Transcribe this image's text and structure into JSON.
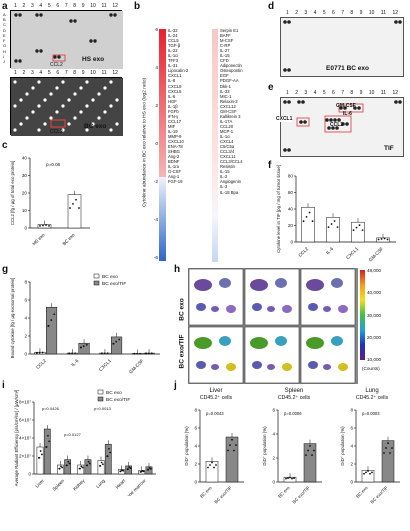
{
  "panels": {
    "a": {
      "letter": "a",
      "columns": [
        "1",
        "2",
        "3",
        "4",
        "5",
        "6",
        "7",
        "8",
        "9",
        "10",
        "11",
        "12"
      ],
      "rows": [
        "A",
        "B",
        "C",
        "D",
        "E",
        "F",
        "G",
        "H",
        "I",
        "J"
      ],
      "hs_label": "HS exo",
      "bc_label": "BC exo",
      "highlight": "CCL2"
    },
    "b": {
      "letter": "b",
      "ylabel": "Cytokine abundance in BC exo relative to HS exo (log2 ratio)",
      "scale_ticks": [
        "6",
        "4",
        "2",
        "0",
        "-2",
        "-4",
        "-6"
      ],
      "left_list": [
        "IL-32",
        "IL-24",
        "CCL5",
        "TGF-β",
        "IL-22",
        "IL-1α",
        "TFF3",
        "IL-31",
        "Lipocalin-2",
        "CXCL1",
        "IL-8",
        "CXCL9",
        "CXCL5",
        "IL-6",
        "HGF",
        "IL-1β",
        "FGFb",
        "IFN-γ",
        "CCL17",
        "MIF",
        "IL-19",
        "MMP-9",
        "CXCL10",
        "ENA-78",
        "SHBG",
        "Ang-2",
        "BDNF",
        "IL-1ra",
        "G-CSF",
        "Ang-1",
        "FGF-19"
      ],
      "right_list": [
        "Serpin E1",
        "BAFF",
        "M-CSF",
        "C-RP",
        "IL-27",
        "IL-15",
        "CFD",
        "Adiponectin",
        "Osteopontin",
        "EGF",
        "PDGF-AA",
        "Dkk-1",
        "IL-33",
        "MIC-1",
        "Relaxin-2",
        "CXCL12",
        "GM-CSF",
        "Kallikrein 3",
        "IL-17A",
        "CCL20",
        "MCP-1",
        "IL-1α",
        "CXCL4",
        "C5/C5a",
        "CCL3/4",
        "CXCL11",
        "CCL3/CCL4",
        "Resistin",
        "IL-15",
        "IL-2",
        "Angiogenin",
        "IL-3",
        "IL-18 Bpa"
      ]
    },
    "c": {
      "letter": "c",
      "ylabel": "CCL2 [fg / μg of total exo protein]",
      "pvalue": "p=0.06",
      "categories": [
        "HS exo",
        "BC exo"
      ],
      "yticks": [
        "40",
        "30",
        "20",
        "10",
        "0"
      ]
    },
    "d": {
      "letter": "d",
      "columns": [
        "1",
        "2",
        "3",
        "4",
        "5",
        "6",
        "7",
        "8",
        "9",
        "10",
        "11",
        "12"
      ],
      "label": "E0771 BC exo"
    },
    "e": {
      "letter": "e",
      "label": "TIF",
      "columns": [
        "1",
        "2",
        "3",
        "4",
        "5",
        "6",
        "7",
        "8",
        "9",
        "10",
        "11",
        "12"
      ],
      "annotations": [
        "GM-CSF",
        "IL-6",
        "CXCL1",
        "CCL2"
      ]
    },
    "f": {
      "letter": "f",
      "ylabel": "Cytokine level in TIF [pg / mg of tumor tissue]",
      "categories": [
        "CCL2",
        "IL-6",
        "CXCL1",
        "GM-CSF"
      ],
      "yticks": [
        "80",
        "60",
        "40",
        "20",
        "0"
      ]
    },
    "g": {
      "letter": "g",
      "ylabel": "Bound cytokine [fg / μg exosomal protein]",
      "legend": [
        "BC exo",
        "BC exo/TIF"
      ],
      "categories": [
        "CCL2",
        "IL-6",
        "CXCL1",
        "GM-CSF"
      ],
      "yticks": [
        "8",
        "6",
        "4",
        "2",
        "0"
      ]
    },
    "h": {
      "letter": "h",
      "row1": "BC exo",
      "row2": "BC exo/TIF",
      "scale": [
        "48,000",
        "40,000",
        "30,000",
        "20,000",
        "10,000"
      ],
      "scale_unit": "(Counts)"
    },
    "i": {
      "letter": "i",
      "ylabel": "Average Radiant Efficiency [p/s/cm²/sr] / [μW/cm²]",
      "legend": [
        "BC exo",
        "BC exo/TIF"
      ],
      "categories": [
        "Liver",
        "Spleen",
        "Kidney",
        "Lung",
        "Heart",
        "Bone marrow"
      ],
      "annotations": [
        "p=0.0426",
        "p=0.0013",
        "p=0.0127"
      ],
      "yticks": [
        "8×10⁷",
        "6×10⁷",
        "4×10⁷",
        "2×10⁷",
        "0"
      ]
    },
    "j": {
      "letter": "j",
      "charts": [
        {
          "title": "Liver",
          "subtitle": "CD45.2⁺ cells",
          "p": "p=0.0043",
          "ylabel": "DiD⁺ population (%)",
          "yticks": [
            "8",
            "6",
            "4",
            "2",
            "0"
          ],
          "categories": [
            "BC exo",
            "BC exo/TIF"
          ]
        },
        {
          "title": "Spleen",
          "subtitle": "CD45.2⁺ cells",
          "p": "p=0.0006",
          "ylabel": "DiD⁺ population (%)",
          "yticks": [
            "6",
            "4",
            "2",
            "0"
          ],
          "categories": [
            "BC exo",
            "BC exo/TIF"
          ]
        },
        {
          "title": "Lung",
          "subtitle": "CD45.2⁺ cells",
          "p": "p=0.0003",
          "ylabel": "DiD⁺ population (%)",
          "yticks": [
            "8",
            "6",
            "4",
            "2",
            "0"
          ],
          "categories": [
            "BC exo",
            "BC exo/TIF"
          ]
        }
      ]
    }
  },
  "chart_data": [
    {
      "type": "bar",
      "panel": "c",
      "categories": [
        "HS exo",
        "BC exo"
      ],
      "values": [
        2,
        19
      ],
      "ylabel": "CCL2 [fg / μg of total exo protein]",
      "ylim": [
        0,
        40
      ]
    },
    {
      "type": "bar",
      "panel": "f",
      "categories": [
        "CCL2",
        "IL-6",
        "CXCL1",
        "GM-CSF"
      ],
      "values": [
        42,
        30,
        24,
        5
      ],
      "ylabel": "Cytokine level in TIF [pg / mg of tumor tissue]",
      "ylim": [
        0,
        80
      ]
    },
    {
      "type": "bar",
      "panel": "g",
      "categories": [
        "CCL2",
        "IL-6",
        "CXCL1",
        "GM-CSF"
      ],
      "series": [
        {
          "name": "BC exo",
          "values": [
            0.2,
            0.1,
            0.1,
            0.05
          ]
        },
        {
          "name": "BC exo/TIF",
          "values": [
            5.2,
            1.2,
            1.9,
            0.1
          ]
        }
      ],
      "ylim": [
        0,
        8
      ]
    },
    {
      "type": "bar",
      "panel": "i",
      "categories": [
        "Liver",
        "Spleen",
        "Kidney",
        "Lung",
        "Heart",
        "Bone marrow"
      ],
      "series": [
        {
          "name": "BC exo",
          "values": [
            3.0,
            1.0,
            1.0,
            1.5,
            0.5,
            0.4
          ]
        },
        {
          "name": "BC exo/TIF",
          "values": [
            5.0,
            1.6,
            1.6,
            3.3,
            0.9,
            0.8
          ]
        }
      ],
      "ylim": [
        0,
        8
      ]
    },
    {
      "type": "bar",
      "panel": "j",
      "title": "Liver",
      "categories": [
        "BC exo",
        "BC exo/TIF"
      ],
      "values": [
        2.3,
        5.0
      ],
      "ylim": [
        0,
        8
      ]
    },
    {
      "type": "bar",
      "panel": "j",
      "title": "Spleen",
      "categories": [
        "BC exo",
        "BC exo/TIF"
      ],
      "values": [
        0.4,
        3.2
      ],
      "ylim": [
        0,
        6
      ]
    },
    {
      "type": "bar",
      "panel": "j",
      "title": "Lung",
      "categories": [
        "BC exo",
        "BC exo/TIF"
      ],
      "values": [
        1.3,
        4.6
      ],
      "ylim": [
        0,
        8
      ]
    }
  ]
}
